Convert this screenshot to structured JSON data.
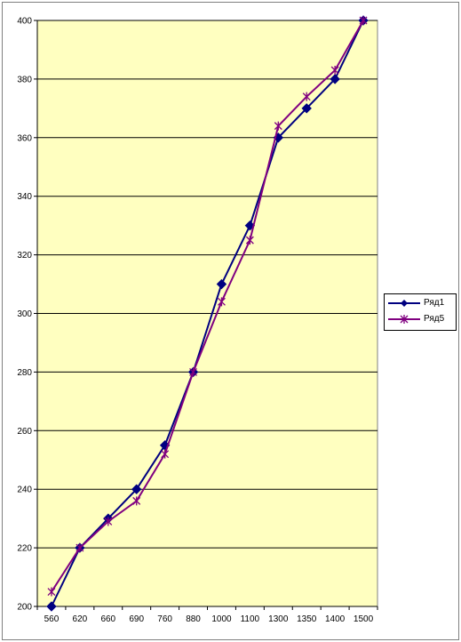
{
  "chart_data": {
    "type": "line",
    "categories": [
      "560",
      "620",
      "660",
      "690",
      "760",
      "880",
      "1000",
      "1100",
      "1300",
      "1350",
      "1400",
      "1500"
    ],
    "series": [
      {
        "name": "Ряд1",
        "values": [
          200,
          220,
          230,
          240,
          255,
          280,
          310,
          330,
          360,
          370,
          380,
          400
        ],
        "color": "#000080",
        "marker": "diamond"
      },
      {
        "name": "Ряд5",
        "values": [
          205,
          220,
          229,
          236,
          252,
          280,
          304,
          325,
          364,
          374,
          383,
          400
        ],
        "color": "#800080",
        "marker": "star"
      }
    ],
    "y_ticks": [
      "200",
      "220",
      "240",
      "260",
      "280",
      "300",
      "320",
      "340",
      "360",
      "380",
      "400"
    ],
    "ylim": [
      200,
      400
    ],
    "grid": "horizontal",
    "legend_position": "right",
    "plot_background": "#FFFFC0"
  }
}
